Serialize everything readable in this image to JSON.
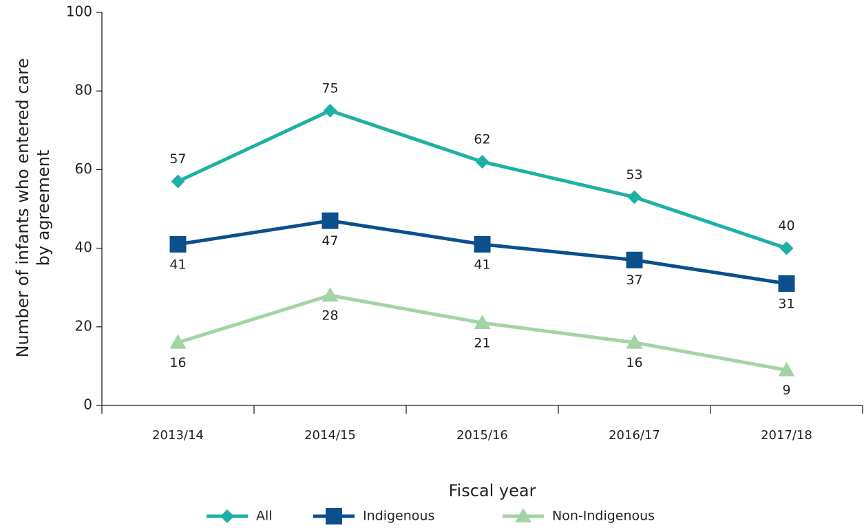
{
  "chart_data": {
    "type": "line",
    "ylabel": [
      "Number of infants who entered care",
      "by agreement"
    ],
    "xlabel": "Fiscal year",
    "categories": [
      "2013/14",
      "2014/15",
      "2015/16",
      "2016/17",
      "2017/18"
    ],
    "series": [
      {
        "name": "All",
        "color": "#1fb0a5",
        "marker": "diamond",
        "values": [
          57,
          75,
          62,
          53,
          40
        ]
      },
      {
        "name": "Indigenous",
        "color": "#0b4f8c",
        "marker": "square",
        "values": [
          41,
          47,
          41,
          37,
          31
        ]
      },
      {
        "name": "Non-Indigenous",
        "color": "#a3d4a4",
        "marker": "triangle",
        "values": [
          16,
          28,
          21,
          16,
          9
        ]
      }
    ],
    "ylim": [
      0,
      100
    ],
    "yticks": [
      0,
      20,
      40,
      60,
      80,
      100
    ],
    "grid": false,
    "legend": "bottom"
  }
}
